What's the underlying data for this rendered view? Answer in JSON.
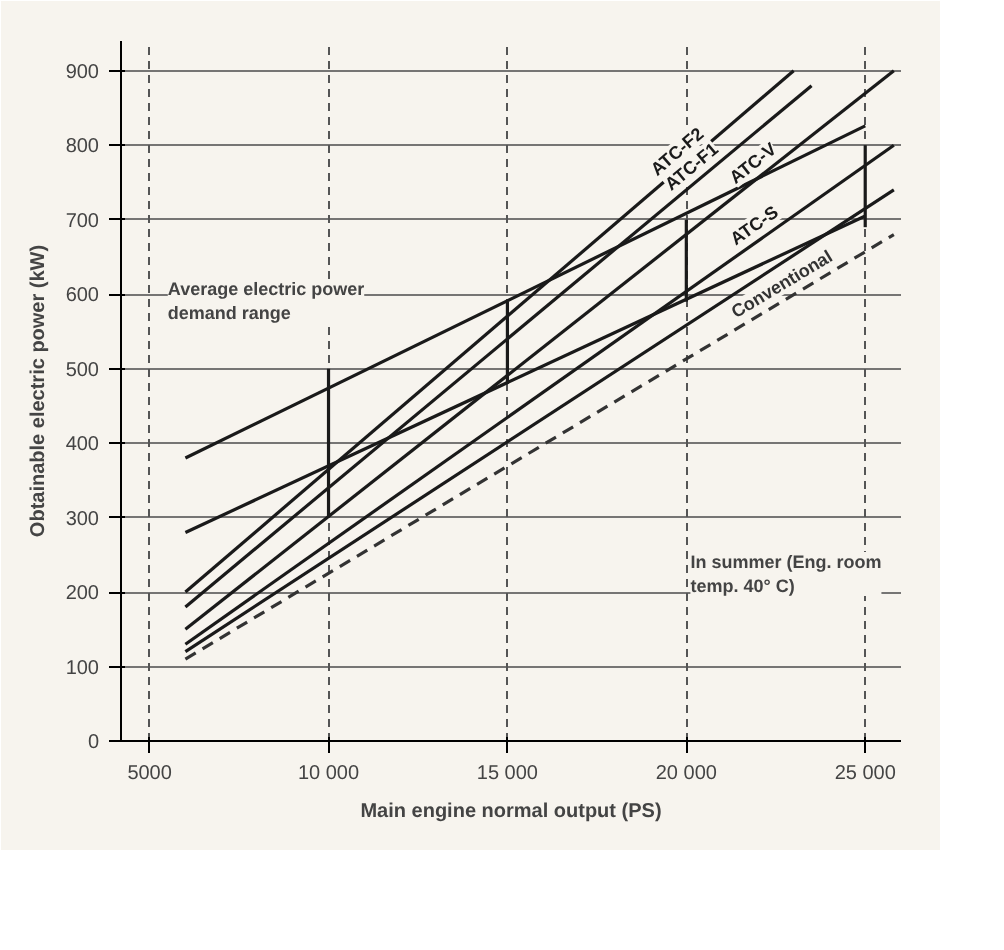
{
  "chart_data": {
    "type": "line",
    "xlabel": "Main engine normal output (PS)",
    "ylabel": "Obtainable electric power (kW)",
    "xlim": [
      4200,
      26000
    ],
    "ylim": [
      0,
      940
    ],
    "xticks": [
      5000,
      {
        "value": 10000,
        "label": "10 000"
      },
      {
        "value": 15000,
        "label": "15 000"
      },
      {
        "value": 20000,
        "label": "20 000"
      },
      {
        "value": 25000,
        "label": "25 000"
      }
    ],
    "yticks": [
      0,
      100,
      200,
      300,
      400,
      500,
      600,
      700,
      800,
      900
    ],
    "grid": true,
    "marker": "none",
    "line_style": "solid",
    "series": [
      {
        "color": "#1a1a1a",
        "x": [
          6000,
          25000
        ],
        "values": [
          380,
          826
        ]
      },
      {
        "color": "#1a1a1a",
        "x": [
          6000,
          25000
        ],
        "values": [
          280,
          705
        ]
      },
      {
        "color": "#1a1a1a",
        "x": [
          10000,
          10000
        ],
        "values": [
          300,
          500
        ]
      },
      {
        "color": "#1a1a1a",
        "x": [
          15000,
          15000
        ],
        "values": [
          480,
          590
        ]
      },
      {
        "color": "#1a1a1a",
        "x": [
          20000,
          20000
        ],
        "values": [
          590,
          700
        ]
      },
      {
        "color": "#1a1a1a",
        "x": [
          25000,
          25000
        ],
        "values": [
          690,
          800
        ]
      },
      {
        "name": "ATC-F2",
        "color": "#1a1a1a",
        "x": [
          6000,
          23000
        ],
        "values": [
          200,
          900
        ]
      },
      {
        "name": "ATC-F1",
        "color": "#1a1a1a",
        "x": [
          6000,
          23500
        ],
        "values": [
          180,
          880
        ]
      },
      {
        "name": "ATC-V",
        "color": "#1a1a1a",
        "x": [
          6000,
          25800
        ],
        "values": [
          150,
          900
        ]
      },
      {
        "name": "ATC-S",
        "color": "#1a1a1a",
        "x": [
          6000,
          25800
        ],
        "values": [
          130,
          800
        ]
      },
      {
        "color": "#1a1a1a",
        "x": [
          6000,
          25800
        ],
        "values": [
          120,
          740
        ]
      },
      {
        "name": "Conventional",
        "color": "#333333",
        "line_style": "dashed",
        "x": [
          6000,
          25800
        ],
        "values": [
          110,
          680
        ]
      }
    ],
    "annotations": [
      "Average electric power demand range",
      "In summer (Eng. room temp. 40° C)"
    ]
  }
}
